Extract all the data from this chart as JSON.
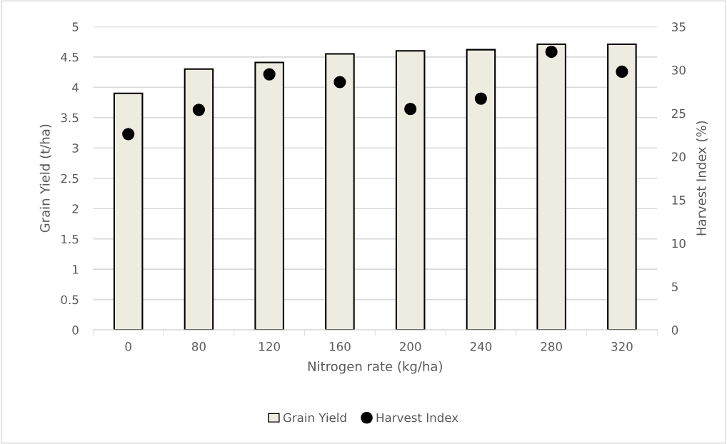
{
  "chart_data": {
    "type": "bar",
    "xlabel": "Nitrogen rate (kg/ha)",
    "ylabel": "Grain Yield (t/ha)",
    "y2label": "Harvest Index (%)",
    "categories": [
      "0",
      "80",
      "120",
      "160",
      "200",
      "240",
      "280",
      "320"
    ],
    "series": [
      {
        "name": "Grain Yield",
        "color": "#eeebe0",
        "values": [
          3.9,
          4.3,
          4.41,
          4.55,
          4.6,
          4.62,
          4.71,
          4.71
        ]
      },
      {
        "name": "Harvest Index",
        "type": "scatter",
        "axis": "y2",
        "color": "#000000",
        "marker": "circle",
        "values": [
          22.6,
          25.4,
          29.5,
          28.6,
          25.5,
          26.7,
          32.1,
          29.8
        ]
      }
    ],
    "ylim": [
      0,
      5
    ],
    "yticks": [
      0,
      0.5,
      1,
      1.5,
      2,
      2.5,
      3,
      3.5,
      4,
      4.5,
      5
    ],
    "y2lim": [
      0,
      35
    ],
    "y2ticks": [
      0,
      5,
      10,
      15,
      20,
      25,
      30,
      35
    ],
    "grid": "y",
    "legend": "bottom"
  }
}
